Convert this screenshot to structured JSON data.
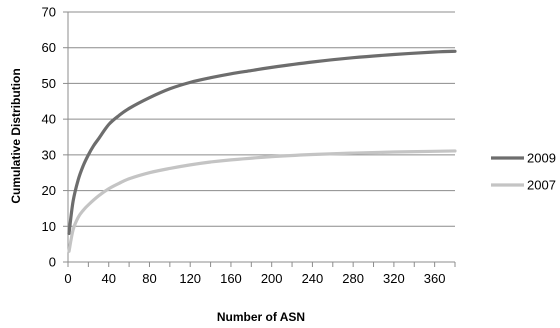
{
  "chart_data": {
    "type": "line",
    "xlabel": "Number of ASN",
    "ylabel": "Cumulative Distribution",
    "xlim": [
      0,
      380
    ],
    "ylim": [
      0,
      70
    ],
    "xticks": [
      0,
      40,
      80,
      120,
      160,
      200,
      240,
      280,
      320,
      360
    ],
    "yticks": [
      0,
      10,
      20,
      30,
      40,
      50,
      60,
      70
    ],
    "grid": "horizontal",
    "legend": "right",
    "series": [
      {
        "name": "2009",
        "color": "#6d6d6d",
        "x": [
          1,
          5,
          10,
          15,
          20,
          25,
          30,
          40,
          50,
          60,
          80,
          100,
          120,
          140,
          160,
          180,
          200,
          240,
          280,
          320,
          360,
          380
        ],
        "y": [
          8,
          17,
          23,
          27,
          30,
          32.5,
          34.5,
          38.5,
          41,
          43,
          46,
          48.5,
          50.3,
          51.6,
          52.7,
          53.6,
          54.5,
          56,
          57.2,
          58.1,
          58.8,
          59
        ]
      },
      {
        "name": "2007",
        "color": "#c4c4c4",
        "x": [
          1,
          5,
          10,
          15,
          20,
          30,
          40,
          50,
          60,
          80,
          100,
          120,
          140,
          160,
          200,
          240,
          280,
          320,
          360,
          380
        ],
        "y": [
          3,
          9,
          12.5,
          14.5,
          16,
          18.5,
          20.5,
          22,
          23.3,
          25,
          26.2,
          27.2,
          28,
          28.6,
          29.5,
          30.1,
          30.5,
          30.8,
          31,
          31.1
        ]
      }
    ]
  }
}
